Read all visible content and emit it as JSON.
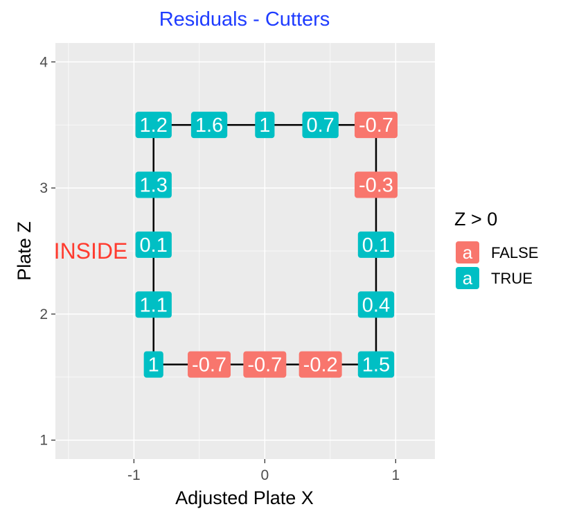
{
  "chart_data": {
    "type": "scatter",
    "title": "Residuals - Cutters",
    "xlabel": "Adjusted Plate X",
    "ylabel": "Plate Z",
    "xlim": [
      -1.6,
      1.3
    ],
    "ylim": [
      0.85,
      4.15
    ],
    "x_ticks": [
      -1,
      0,
      1
    ],
    "x_tick_labels": [
      "-1",
      "0",
      "1"
    ],
    "y_ticks": [
      1,
      2,
      3,
      4
    ],
    "y_tick_labels": [
      "1",
      "2",
      "3",
      "4"
    ],
    "x_minor_ticks": [
      -1.5,
      -0.5,
      0.5
    ],
    "y_minor_ticks": [
      1.5,
      2.5,
      3.5
    ],
    "grid": true,
    "strike_zone": {
      "x": [
        -0.85,
        0.85
      ],
      "y": [
        1.6,
        3.5
      ]
    },
    "points": [
      {
        "x": -0.85,
        "y": 3.5,
        "label": "1.2",
        "positive": "TRUE"
      },
      {
        "x": -0.425,
        "y": 3.5,
        "label": "1.6",
        "positive": "TRUE"
      },
      {
        "x": 0.0,
        "y": 3.5,
        "label": "1",
        "positive": "TRUE"
      },
      {
        "x": 0.425,
        "y": 3.5,
        "label": "0.7",
        "positive": "TRUE"
      },
      {
        "x": 0.85,
        "y": 3.5,
        "label": "-0.7",
        "positive": "FALSE"
      },
      {
        "x": -0.85,
        "y": 3.025,
        "label": "1.3",
        "positive": "TRUE"
      },
      {
        "x": 0.85,
        "y": 3.025,
        "label": "-0.3",
        "positive": "FALSE"
      },
      {
        "x": -0.85,
        "y": 2.55,
        "label": "0.1",
        "positive": "TRUE"
      },
      {
        "x": 0.85,
        "y": 2.55,
        "label": "0.1",
        "positive": "TRUE"
      },
      {
        "x": -0.85,
        "y": 2.075,
        "label": "1.1",
        "positive": "TRUE"
      },
      {
        "x": 0.85,
        "y": 2.075,
        "label": "0.4",
        "positive": "TRUE"
      },
      {
        "x": -0.85,
        "y": 1.6,
        "label": "1",
        "positive": "TRUE"
      },
      {
        "x": -0.425,
        "y": 1.6,
        "label": "-0.7",
        "positive": "FALSE"
      },
      {
        "x": 0.0,
        "y": 1.6,
        "label": "-0.7",
        "positive": "FALSE"
      },
      {
        "x": 0.425,
        "y": 1.6,
        "label": "-0.2",
        "positive": "FALSE"
      },
      {
        "x": 0.85,
        "y": 1.6,
        "label": "1.5",
        "positive": "TRUE"
      }
    ],
    "annotations": [
      {
        "text": "INSIDE",
        "x": -1.33,
        "y": 2.5,
        "color": "#ff3b2f"
      }
    ],
    "legend": {
      "title": "Z > 0",
      "placement": "right",
      "key_glyph": "a",
      "entries": [
        {
          "label": "FALSE",
          "color": "#f8766d"
        },
        {
          "label": "TRUE",
          "color": "#00bfc4"
        }
      ]
    },
    "colors": {
      "FALSE": "#f8766d",
      "TRUE": "#00bfc4",
      "panel": "#ebebeb",
      "grid": "#ffffff",
      "title": "#1f3cff"
    }
  }
}
